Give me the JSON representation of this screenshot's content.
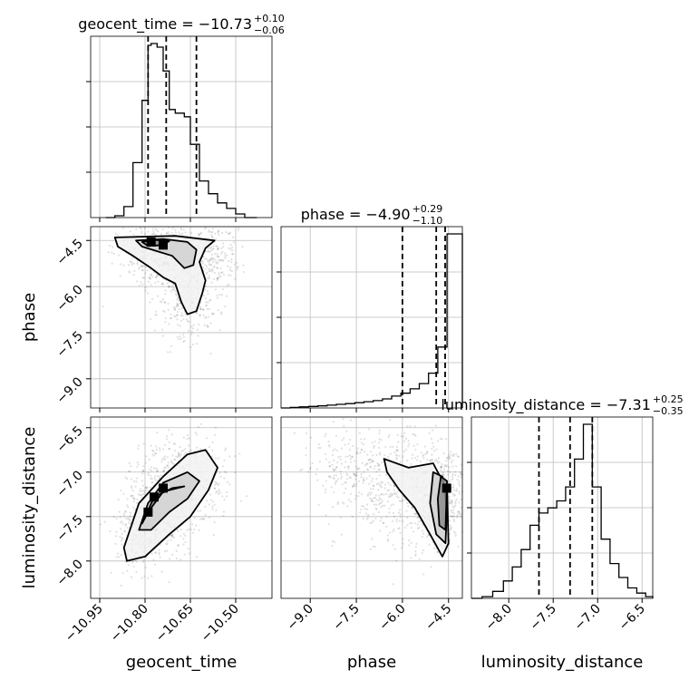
{
  "chart_data": {
    "type": "corner",
    "parameters": [
      "geocent_time",
      "phase",
      "luminosity_distance"
    ],
    "ranges": {
      "geocent_time": [
        -10.98,
        -10.38
      ],
      "phase": [
        -9.95,
        -4.05
      ],
      "luminosity_distance": [
        -8.42,
        -6.38
      ]
    },
    "ticks": {
      "geocent_time": [
        "−10.95",
        "−10.80",
        "−10.65",
        "−10.50"
      ],
      "phase": [
        "−9.0",
        "−7.5",
        "−6.0",
        "−4.5"
      ],
      "luminosity_distance": [
        "−8.0",
        "−7.5",
        "−7.0",
        "−6.5"
      ]
    },
    "tick_values": {
      "geocent_time": [
        -10.95,
        -10.8,
        -10.65,
        -10.5
      ],
      "phase": [
        -9.0,
        -7.5,
        -6.0,
        -4.5
      ],
      "luminosity_distance": [
        -8.0,
        -7.5,
        -7.0,
        -6.5
      ]
    },
    "titles": {
      "geocent_time": {
        "text": "geocent_time = −10.73",
        "upper": "+0.10",
        "lower": "−0.06"
      },
      "phase": {
        "text": "phase = −4.90",
        "upper": "+0.29",
        "lower": "−1.10"
      },
      "luminosity_distance": {
        "text": "luminosity_distance = −7.31",
        "upper": "+0.25",
        "lower": "−0.35"
      }
    },
    "quantiles": {
      "geocent_time": [
        -10.79,
        -10.73,
        -10.63
      ],
      "phase": [
        -6.0,
        -4.9,
        -4.61
      ],
      "luminosity_distance": [
        -7.66,
        -7.31,
        -7.06
      ]
    },
    "histograms": {
      "geocent_time": {
        "edges": [
          -10.93,
          -10.9,
          -10.87,
          -10.84,
          -10.81,
          -10.79,
          -10.78,
          -10.76,
          -10.74,
          -10.72,
          -10.7,
          -10.67,
          -10.65,
          -10.62,
          -10.59,
          -10.56,
          -10.53,
          -10.5,
          -10.47,
          -10.43
        ],
        "counts": [
          0,
          1,
          6,
          30,
          64,
          94,
          95,
          93,
          80,
          59,
          57,
          55,
          40,
          20,
          13,
          8,
          5,
          2,
          0
        ]
      },
      "phase": {
        "edges": [
          -9.95,
          -9.65,
          -9.35,
          -9.05,
          -8.75,
          -8.45,
          -8.15,
          -7.85,
          -7.55,
          -7.25,
          -6.95,
          -6.65,
          -6.35,
          -6.05,
          -5.75,
          -5.45,
          -5.15,
          -4.85,
          -4.55,
          -4.05
        ],
        "counts": [
          0,
          0.3,
          0.6,
          0.9,
          1.2,
          1.6,
          2.1,
          2.5,
          3.0,
          3.6,
          4.2,
          5.2,
          6.8,
          8.5,
          11,
          14,
          20,
          35,
          100
        ]
      },
      "luminosity_distance": {
        "edges": [
          -8.42,
          -8.3,
          -8.18,
          -8.06,
          -7.96,
          -7.86,
          -7.76,
          -7.66,
          -7.56,
          -7.46,
          -7.36,
          -7.26,
          -7.16,
          -7.06,
          -6.96,
          -6.86,
          -6.76,
          -6.66,
          -6.56,
          -6.46,
          -6.38
        ],
        "counts": [
          0,
          1,
          4,
          10,
          18,
          28,
          42,
          49,
          52,
          56,
          64,
          80,
          100,
          64,
          34,
          20,
          12,
          6,
          3,
          1
        ]
      }
    },
    "contours": {
      "phase_vs_geocent_time": [
        [
          [
            -10.9,
            -4.4
          ],
          [
            -10.7,
            -4.35
          ],
          [
            -10.57,
            -4.5
          ],
          [
            -10.6,
            -4.75
          ],
          [
            -10.62,
            -5.2
          ],
          [
            -10.6,
            -5.8
          ],
          [
            -10.61,
            -6.2
          ],
          [
            -10.63,
            -6.8
          ],
          [
            -10.66,
            -6.9
          ],
          [
            -10.68,
            -6.5
          ],
          [
            -10.7,
            -5.9
          ],
          [
            -10.74,
            -5.7
          ],
          [
            -10.78,
            -5.4
          ],
          [
            -10.84,
            -5.0
          ],
          [
            -10.89,
            -4.7
          ]
        ],
        [
          [
            -10.83,
            -4.5
          ],
          [
            -10.74,
            -4.45
          ],
          [
            -10.66,
            -4.55
          ],
          [
            -10.63,
            -4.8
          ],
          [
            -10.64,
            -5.3
          ],
          [
            -10.67,
            -5.4
          ],
          [
            -10.71,
            -5.0
          ],
          [
            -10.76,
            -4.85
          ],
          [
            -10.81,
            -4.7
          ]
        ],
        [
          [
            -10.81,
            -4.55
          ],
          [
            -10.77,
            -4.48
          ],
          [
            -10.72,
            -4.52
          ],
          [
            -10.74,
            -4.65
          ],
          [
            -10.79,
            -4.68
          ]
        ]
      ],
      "luminosity_distance_vs_geocent_time": [
        [
          [
            -10.87,
            -7.85
          ],
          [
            -10.82,
            -7.35
          ],
          [
            -10.74,
            -7.05
          ],
          [
            -10.66,
            -6.8
          ],
          [
            -10.6,
            -6.75
          ],
          [
            -10.56,
            -6.95
          ],
          [
            -10.59,
            -7.2
          ],
          [
            -10.65,
            -7.5
          ],
          [
            -10.72,
            -7.7
          ],
          [
            -10.8,
            -7.95
          ],
          [
            -10.86,
            -8.0
          ]
        ],
        [
          [
            -10.82,
            -7.65
          ],
          [
            -10.79,
            -7.35
          ],
          [
            -10.74,
            -7.12
          ],
          [
            -10.66,
            -7.0
          ],
          [
            -10.62,
            -7.1
          ],
          [
            -10.66,
            -7.3
          ],
          [
            -10.72,
            -7.45
          ],
          [
            -10.78,
            -7.65
          ]
        ],
        [
          [
            -10.81,
            -7.58
          ],
          [
            -10.77,
            -7.28
          ],
          [
            -10.71,
            -7.18
          ],
          [
            -10.67,
            -7.16
          ],
          [
            -10.74,
            -7.22
          ],
          [
            -10.79,
            -7.45
          ]
        ]
      ],
      "luminosity_distance_vs_phase": [
        [
          [
            -6.6,
            -6.85
          ],
          [
            -5.8,
            -6.95
          ],
          [
            -5.0,
            -6.9
          ],
          [
            -4.55,
            -7.2
          ],
          [
            -4.5,
            -7.8
          ],
          [
            -4.7,
            -7.95
          ],
          [
            -5.1,
            -7.7
          ],
          [
            -5.6,
            -7.4
          ],
          [
            -6.1,
            -7.2
          ],
          [
            -6.5,
            -7.0
          ]
        ],
        [
          [
            -5.0,
            -7.0
          ],
          [
            -4.7,
            -7.05
          ],
          [
            -4.55,
            -7.4
          ],
          [
            -4.6,
            -7.8
          ],
          [
            -4.9,
            -7.7
          ],
          [
            -5.1,
            -7.35
          ]
        ],
        [
          [
            -4.75,
            -7.05
          ],
          [
            -4.55,
            -7.1
          ],
          [
            -4.6,
            -7.65
          ],
          [
            -4.8,
            -7.6
          ],
          [
            -4.85,
            -7.3
          ]
        ]
      ]
    },
    "density_peaks": {
      "phase_vs_geocent_time": [
        [
          -10.78,
          -4.55
        ],
        [
          -10.74,
          -4.65
        ]
      ],
      "luminosity_distance_vs_geocent_time": [
        [
          -10.79,
          -7.45
        ],
        [
          -10.77,
          -7.28
        ],
        [
          -10.74,
          -7.18
        ]
      ],
      "luminosity_distance_vs_phase": [
        [
          -4.56,
          -7.18
        ]
      ]
    }
  }
}
